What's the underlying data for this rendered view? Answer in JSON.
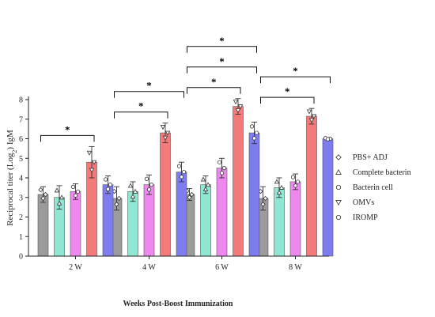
{
  "chart_data": {
    "type": "bar",
    "title": "",
    "ylabel": "Reciprocal titer (Log₂) IgM",
    "ylabel_main": "Reciprocal titer (Log",
    "ylabel_sub": "2",
    "ylabel_end": ") IgM",
    "xlabel": "Weeks Post-Boost Immunization",
    "ylim": [
      0,
      8
    ],
    "yticks": [
      "0",
      "1",
      "2",
      "3",
      "4",
      "5",
      "6",
      "7",
      "8"
    ],
    "categories": [
      "2 W",
      "4 W",
      "6 W",
      "8 W"
    ],
    "legend_position": "right",
    "series": [
      {
        "name": "PBS+ ADJ",
        "color": "#9b9b9b",
        "marker": "diamond",
        "values": [
          3.15,
          2.95,
          3.15,
          2.95
        ],
        "errors": [
          0.4,
          0.6,
          0.3,
          0.6
        ]
      },
      {
        "name": "Complete bacterin",
        "color": "#8fe6d2",
        "marker": "triangle-up",
        "values": [
          3.0,
          3.3,
          3.65,
          3.5
        ],
        "errors": [
          0.6,
          0.5,
          0.45,
          0.5
        ]
      },
      {
        "name": "Bacterin cell",
        "color": "#ee88ee",
        "marker": "circle",
        "values": [
          3.3,
          3.65,
          4.5,
          3.8
        ],
        "errors": [
          0.4,
          0.5,
          0.5,
          0.4
        ]
      },
      {
        "name": "OMVs",
        "color": "#f47a7a",
        "marker": "triangle-down",
        "values": [
          4.8,
          6.3,
          7.65,
          7.15
        ],
        "errors": [
          0.8,
          0.5,
          0.4,
          0.4
        ]
      },
      {
        "name": "IROMP",
        "color": "#7d7df0",
        "marker": "circle",
        "values": [
          3.65,
          4.3,
          6.3,
          6.0
        ],
        "errors": [
          0.45,
          0.5,
          0.55,
          0.05
        ]
      }
    ],
    "annotations": [
      {
        "label": "*",
        "group": 0,
        "from_series": 0,
        "to_series": 3,
        "level": 1
      },
      {
        "label": "*",
        "group": 1,
        "from_series": 0,
        "to_series": 3,
        "level": 1
      },
      {
        "label": "*",
        "group": 1,
        "from_series": 0,
        "to_series": 4,
        "level": 2
      },
      {
        "label": "*",
        "group": 2,
        "from_series": 0,
        "to_series": 3,
        "level": 1
      },
      {
        "label": "*",
        "group": 2,
        "from_series": 0,
        "to_series": 4,
        "level": 2
      },
      {
        "label": "*",
        "group": 2,
        "from_series": 0,
        "to_series": 4,
        "level": 3
      },
      {
        "label": "*",
        "group": 3,
        "from_series": 0,
        "to_series": 3,
        "level": 1
      },
      {
        "label": "*",
        "group": 3,
        "from_series": 0,
        "to_series": 4,
        "level": 2
      }
    ]
  }
}
